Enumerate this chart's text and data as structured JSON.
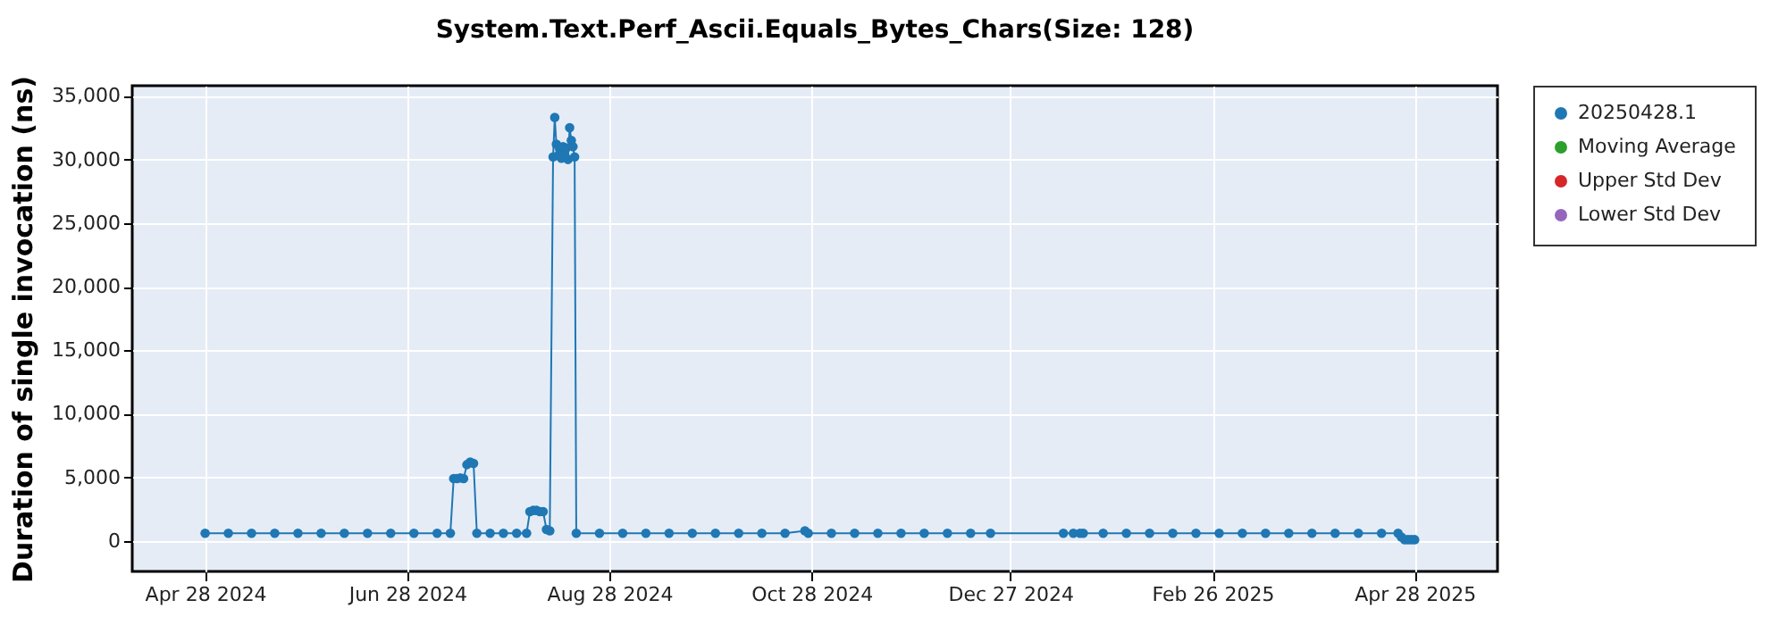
{
  "chart_data": {
    "type": "line",
    "title": "System.Text.Perf_Ascii.Equals_Bytes_Chars(Size: 128)",
    "ylabel": "Duration of single invocation (ns)",
    "x": [
      "2024-04-28",
      "2024-05-05",
      "2024-05-12",
      "2024-05-19",
      "2024-05-26",
      "2024-06-02",
      "2024-06-09",
      "2024-06-16",
      "2024-06-23",
      "2024-06-30",
      "2024-07-07",
      "2024-07-11",
      "2024-07-12",
      "2024-07-13",
      "2024-07-14",
      "2024-07-15",
      "2024-07-16",
      "2024-07-17",
      "2024-07-18",
      "2024-07-19",
      "2024-07-23",
      "2024-07-27",
      "2024-07-31",
      "2024-08-03",
      "2024-08-04",
      "2024-08-05",
      "2024-08-06",
      "2024-08-07",
      "2024-08-08",
      "2024-08-09",
      "2024-08-10",
      "2024-08-11",
      "2024-08-11T12:00",
      "2024-08-12",
      "2024-08-12T12:00",
      "2024-08-13",
      "2024-08-13T12:00",
      "2024-08-14",
      "2024-08-14T12:00",
      "2024-08-15",
      "2024-08-15T12:00",
      "2024-08-16",
      "2024-08-16T12:00",
      "2024-08-17",
      "2024-08-17T12:00",
      "2024-08-18",
      "2024-08-25",
      "2024-09-01",
      "2024-09-08",
      "2024-09-15",
      "2024-09-22",
      "2024-09-29",
      "2024-10-06",
      "2024-10-13",
      "2024-10-20",
      "2024-10-26",
      "2024-10-27",
      "2024-11-03",
      "2024-11-10",
      "2024-11-17",
      "2024-11-24",
      "2024-12-01",
      "2024-12-08",
      "2024-12-15",
      "2024-12-21",
      "2025-01-12",
      "2025-01-15",
      "2025-01-17",
      "2025-01-18",
      "2025-01-24",
      "2025-01-31",
      "2025-02-07",
      "2025-02-14",
      "2025-02-21",
      "2025-02-28",
      "2025-03-07",
      "2025-03-14",
      "2025-03-21",
      "2025-03-28",
      "2025-04-04",
      "2025-04-11",
      "2025-04-18",
      "2025-04-23",
      "2025-04-24",
      "2025-04-25",
      "2025-04-26",
      "2025-04-27",
      "2025-04-28"
    ],
    "series": [
      {
        "name": "20250428.1",
        "color": "#1f77b4",
        "values": [
          600,
          600,
          600,
          600,
          600,
          600,
          600,
          600,
          600,
          600,
          600,
          600,
          4900,
          4900,
          4950,
          4900,
          6000,
          6200,
          6100,
          600,
          600,
          600,
          600,
          600,
          2300,
          2400,
          2400,
          2300,
          2300,
          900,
          800,
          30200,
          33300,
          31200,
          30300,
          30800,
          30100,
          31000,
          30400,
          30900,
          30000,
          32500,
          31500,
          31000,
          30200,
          600,
          600,
          600,
          600,
          600,
          600,
          600,
          600,
          600,
          600,
          800,
          600,
          600,
          600,
          600,
          600,
          600,
          600,
          600,
          600,
          600,
          600,
          600,
          600,
          600,
          600,
          600,
          600,
          600,
          600,
          600,
          600,
          600,
          600,
          600,
          600,
          600,
          600,
          300,
          100,
          100,
          100,
          100
        ]
      },
      {
        "name": "Moving Average",
        "color": "#2ca02c",
        "values": [
          null,
          null,
          null,
          null,
          null,
          null,
          null,
          null,
          null,
          null,
          null,
          null,
          null,
          null,
          null,
          null,
          null,
          null,
          null,
          null,
          null,
          null,
          null,
          null,
          null,
          null,
          null,
          null,
          null,
          null,
          null,
          null,
          null,
          null,
          null,
          null,
          null,
          null,
          null,
          null,
          null,
          null,
          null,
          null,
          null,
          null,
          null,
          null,
          null,
          null,
          null,
          null,
          null,
          null,
          null,
          null,
          null,
          null,
          null,
          null,
          null,
          null,
          null,
          null,
          null,
          null,
          null,
          null,
          null,
          null,
          null,
          null,
          null,
          null,
          null,
          null,
          null,
          null,
          null,
          null,
          null,
          null,
          null,
          null,
          null,
          null,
          null,
          null
        ]
      },
      {
        "name": "Upper Std Dev",
        "color": "#d62728",
        "values": [
          null,
          null,
          null,
          null,
          null,
          null,
          null,
          null,
          null,
          null,
          null,
          null,
          null,
          null,
          null,
          null,
          null,
          null,
          null,
          null,
          null,
          null,
          null,
          null,
          null,
          null,
          null,
          null,
          null,
          null,
          null,
          null,
          null,
          null,
          null,
          null,
          null,
          null,
          null,
          null,
          null,
          null,
          null,
          null,
          null,
          null,
          null,
          null,
          null,
          null,
          null,
          null,
          null,
          null,
          null,
          null,
          null,
          null,
          null,
          null,
          null,
          null,
          null,
          null,
          null,
          null,
          null,
          null,
          null,
          null,
          null,
          null,
          null,
          null,
          null,
          null,
          null,
          null,
          null,
          null,
          null,
          null,
          null,
          null,
          null,
          null,
          null,
          null
        ]
      },
      {
        "name": "Lower Std Dev",
        "color": "#9467bd",
        "values": [
          null,
          null,
          null,
          null,
          null,
          null,
          null,
          null,
          null,
          null,
          null,
          null,
          null,
          null,
          null,
          null,
          null,
          null,
          null,
          null,
          null,
          null,
          null,
          null,
          null,
          null,
          null,
          null,
          null,
          null,
          null,
          null,
          null,
          null,
          null,
          null,
          null,
          null,
          null,
          null,
          null,
          null,
          null,
          null,
          null,
          null,
          null,
          null,
          null,
          null,
          null,
          null,
          null,
          null,
          null,
          null,
          null,
          null,
          null,
          null,
          null,
          null,
          null,
          null,
          null,
          null,
          null,
          null,
          null,
          null,
          null,
          null,
          null,
          null,
          null,
          null,
          null,
          null,
          null,
          null,
          null,
          null,
          null,
          null,
          null,
          null,
          null,
          null
        ]
      }
    ],
    "xlim": [
      "2024-04-06",
      "2025-05-23"
    ],
    "xticks": [
      {
        "value": "2024-04-28",
        "label": "Apr 28 2024"
      },
      {
        "value": "2024-06-28",
        "label": "Jun 28 2024"
      },
      {
        "value": "2024-08-28",
        "label": "Aug 28 2024"
      },
      {
        "value": "2024-10-28",
        "label": "Oct 28 2024"
      },
      {
        "value": "2024-12-27",
        "label": "Dec 27 2024"
      },
      {
        "value": "2025-02-26",
        "label": "Feb 26 2025"
      },
      {
        "value": "2025-04-28",
        "label": "Apr 28 2025"
      }
    ],
    "ylim": [
      -2400,
      35800
    ],
    "yticks": [
      {
        "value": 0,
        "label": "0"
      },
      {
        "value": 5000,
        "label": "5,000"
      },
      {
        "value": 10000,
        "label": "10,000"
      },
      {
        "value": 15000,
        "label": "15,000"
      },
      {
        "value": 20000,
        "label": "20,000"
      },
      {
        "value": 25000,
        "label": "25,000"
      },
      {
        "value": 30000,
        "label": "30,000"
      },
      {
        "value": 35000,
        "label": "35,000"
      }
    ],
    "grid": true,
    "legend": "right",
    "marker": "circle",
    "line_style": "solid"
  }
}
